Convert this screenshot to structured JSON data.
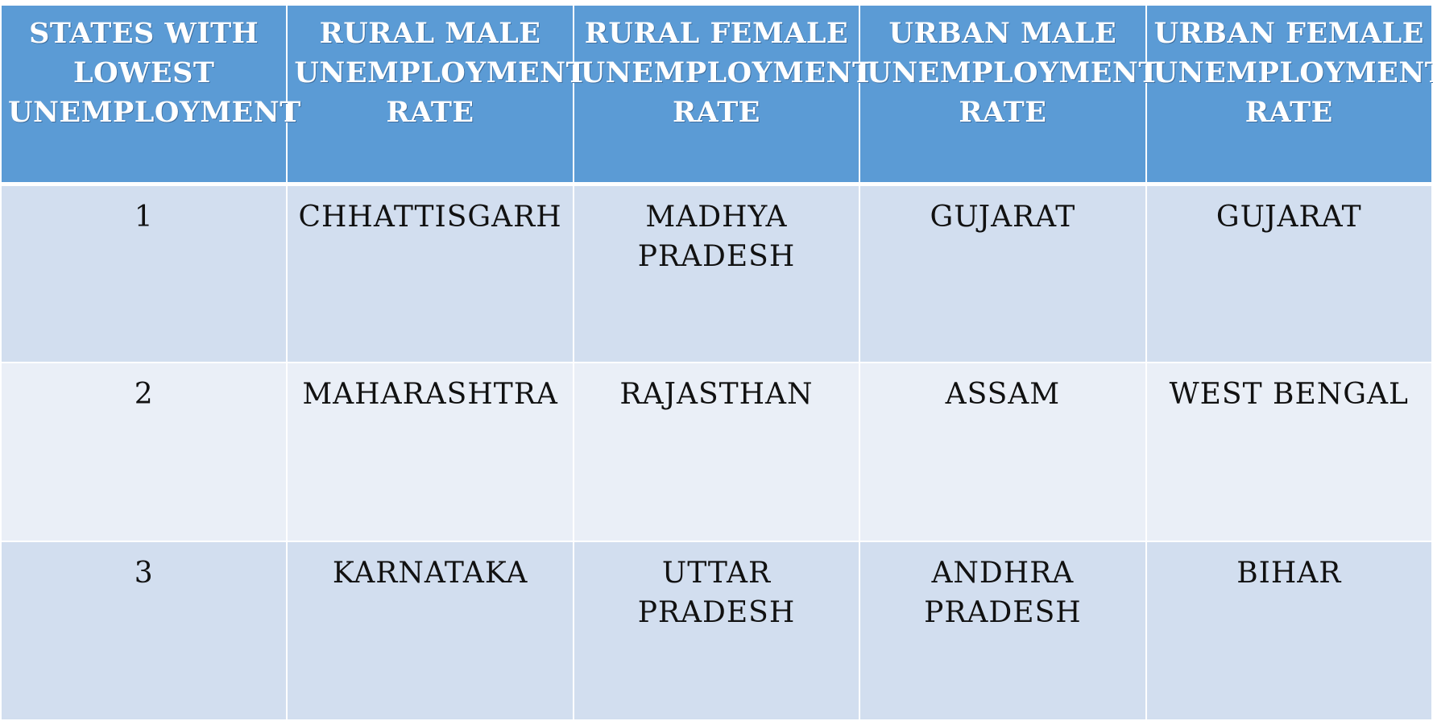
{
  "table": {
    "headers": [
      "STATES WITH LOWEST UNEMPLOYMENT",
      "RURAL MALE UNEMPLOYMENT RATE",
      "RURAL FEMALE UNEMPLOYMENT RATE",
      "URBAN MALE UNEMPLOYMENT RATE",
      "URBAN FEMALE UNEMPLOYMENT RATE"
    ],
    "rows": [
      [
        "1",
        "CHHATTISGARH",
        "MADHYA PRADESH",
        "GUJARAT",
        "GUJARAT"
      ],
      [
        "2",
        "MAHARASHTRA",
        "RAJASTHAN",
        "ASSAM",
        "WEST BENGAL"
      ],
      [
        "3",
        "KARNATAKA",
        "UTTAR PRADESH",
        "ANDHRA PRADESH",
        "BIHAR"
      ]
    ]
  },
  "colors": {
    "header_bg": "#5b9bd5",
    "row_odd_bg": "#d2deef",
    "row_even_bg": "#eaeff7",
    "header_text": "#ffffff",
    "cell_text": "#111111"
  }
}
